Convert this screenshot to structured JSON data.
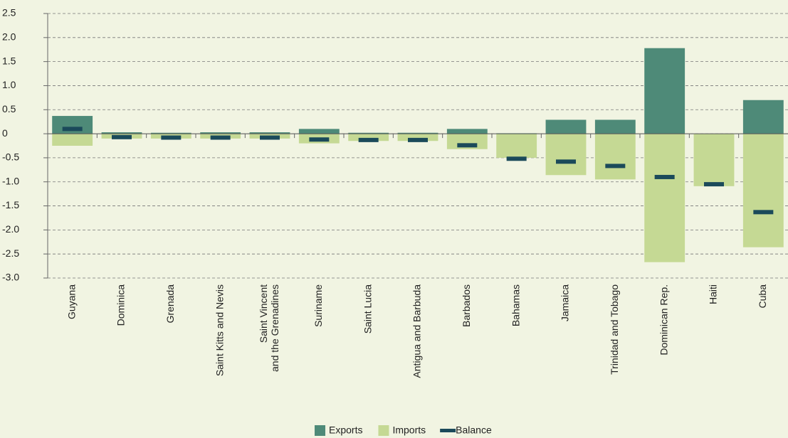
{
  "chart_data": {
    "type": "bar",
    "categories": [
      "Guyana",
      "Dominica",
      "Grenada",
      "Saint Kitts and Nevis",
      "Saint Vincent\nand the Grenadines",
      "Suriname",
      "Saint Lucia",
      "Antigua and Barbuda",
      "Barbados",
      "Bahamas",
      "Jamaica",
      "Trinidad and Tobago",
      "Dominican Rep.",
      "Haiti",
      "Cuba"
    ],
    "series": [
      {
        "name": "Exports",
        "color": "#4e8a78",
        "values": [
          0.37,
          0.03,
          0.02,
          0.03,
          0.03,
          0.1,
          0.02,
          0.02,
          0.1,
          0.01,
          0.29,
          0.29,
          1.78,
          0.0,
          0.7
        ]
      },
      {
        "name": "Imports",
        "color": "#c5d994",
        "values": [
          -0.25,
          -0.1,
          -0.1,
          -0.1,
          -0.1,
          -0.2,
          -0.15,
          -0.15,
          -0.32,
          -0.5,
          -0.86,
          -0.95,
          -2.67,
          -1.09,
          -2.36
        ]
      },
      {
        "name": "Balance",
        "color": "#1b4a5a",
        "values": [
          0.1,
          -0.07,
          -0.08,
          -0.08,
          -0.08,
          -0.12,
          -0.13,
          -0.13,
          -0.24,
          -0.52,
          -0.58,
          -0.67,
          -0.9,
          -1.05,
          -1.63
        ]
      }
    ],
    "ylim": [
      -3.0,
      2.5
    ],
    "yticks": [
      {
        "value": -3,
        "label": "-3.0"
      },
      -2.5,
      {
        "value": -2,
        "label": "-2.0"
      },
      -1.5,
      {
        "value": -1,
        "label": "-1.0"
      },
      -0.5,
      0,
      0.5,
      {
        "value": 1,
        "label": "1.0"
      },
      1.5,
      {
        "value": 2,
        "label": "2.0"
      },
      2.5
    ],
    "grid": true
  }
}
